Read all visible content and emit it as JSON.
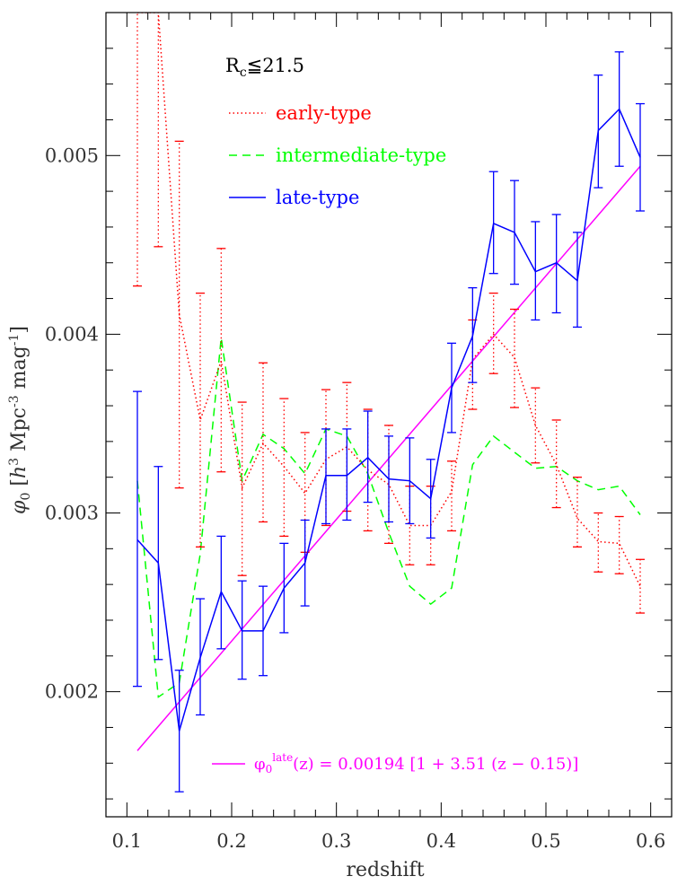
{
  "chart_data": {
    "type": "line",
    "xlabel": "redshift",
    "ylabel": "φ0 [h3 Mpc-3 mag-1]",
    "xlim": [
      0.08,
      0.62
    ],
    "ylim": [
      0.0013,
      0.0058
    ],
    "x_ticks": [
      "0.1",
      "0.2",
      "0.3",
      "0.4",
      "0.5",
      "0.6"
    ],
    "y_ticks": [
      "0.002",
      "0.003",
      "0.004",
      "0.005"
    ],
    "selection_label": "Rc≦21.5",
    "series": [
      {
        "name": "early-type",
        "color": "#ff0000",
        "style": "dotted",
        "x": [
          0.11,
          0.13,
          0.15,
          0.17,
          0.19,
          0.21,
          0.23,
          0.25,
          0.27,
          0.29,
          0.31,
          0.33,
          0.35,
          0.37,
          0.39,
          0.41,
          0.43,
          0.45,
          0.47,
          0.49,
          0.51,
          0.53,
          0.55,
          0.57,
          0.59
        ],
        "y": [
          0.0058,
          0.0058,
          0.00411,
          0.00352,
          0.00385,
          0.00314,
          0.00339,
          0.00326,
          0.00311,
          0.0033,
          0.00337,
          0.00324,
          0.00316,
          0.00293,
          0.00293,
          0.00312,
          0.00386,
          0.004,
          0.00387,
          0.00349,
          0.00327,
          0.00297,
          0.00284,
          0.00283,
          0.00259
        ],
        "err_low": [
          0.00427,
          0.00449,
          0.00314,
          0.00281,
          0.00323,
          0.00265,
          0.00295,
          0.00287,
          0.00278,
          0.00293,
          0.00301,
          0.0029,
          0.00283,
          0.00271,
          0.00271,
          0.0029,
          0.00358,
          0.00378,
          0.00359,
          0.00328,
          0.00303,
          0.00281,
          0.00267,
          0.00266,
          0.00244
        ],
        "err_high": [
          0.0058,
          0.0058,
          0.00508,
          0.00423,
          0.00448,
          0.00362,
          0.00384,
          0.00364,
          0.00345,
          0.00369,
          0.00373,
          0.00358,
          0.00349,
          0.00315,
          0.00315,
          0.00329,
          0.00408,
          0.00423,
          0.00414,
          0.0037,
          0.00352,
          0.0032,
          0.003,
          0.00298,
          0.00274
        ]
      },
      {
        "name": "intermediate-type",
        "color": "#00ff00",
        "style": "dashed",
        "x": [
          0.11,
          0.13,
          0.15,
          0.17,
          0.19,
          0.21,
          0.23,
          0.25,
          0.27,
          0.29,
          0.31,
          0.33,
          0.35,
          0.37,
          0.39,
          0.41,
          0.43,
          0.45,
          0.47,
          0.49,
          0.51,
          0.53,
          0.55,
          0.57,
          0.59
        ],
        "y": [
          0.00318,
          0.00197,
          0.00205,
          0.00277,
          0.00398,
          0.00318,
          0.00344,
          0.00336,
          0.00322,
          0.00347,
          0.00343,
          0.00322,
          0.00289,
          0.00259,
          0.00249,
          0.00258,
          0.00327,
          0.00343,
          0.00334,
          0.00325,
          0.00326,
          0.00318,
          0.00313,
          0.00315,
          0.00299
        ]
      },
      {
        "name": "late-type",
        "color": "#0000ff",
        "style": "solid",
        "x": [
          0.11,
          0.13,
          0.15,
          0.17,
          0.19,
          0.21,
          0.23,
          0.25,
          0.27,
          0.29,
          0.31,
          0.33,
          0.35,
          0.37,
          0.39,
          0.41,
          0.43,
          0.45,
          0.47,
          0.49,
          0.51,
          0.53,
          0.55,
          0.57,
          0.59
        ],
        "y": [
          0.00285,
          0.00272,
          0.00178,
          0.00219,
          0.00256,
          0.00234,
          0.00234,
          0.00258,
          0.00272,
          0.00321,
          0.00321,
          0.00331,
          0.00319,
          0.00318,
          0.00308,
          0.0037,
          0.00399,
          0.00462,
          0.00457,
          0.00435,
          0.0044,
          0.0043,
          0.00514,
          0.00526,
          0.00499
        ],
        "err_low": [
          0.00203,
          0.00218,
          0.00144,
          0.00187,
          0.00224,
          0.00207,
          0.00209,
          0.00233,
          0.00248,
          0.00294,
          0.00296,
          0.00306,
          0.00295,
          0.00294,
          0.00286,
          0.00345,
          0.00373,
          0.00434,
          0.00428,
          0.00408,
          0.00412,
          0.00404,
          0.00482,
          0.00494,
          0.00469
        ],
        "err_high": [
          0.00368,
          0.00326,
          0.00212,
          0.00252,
          0.00287,
          0.00262,
          0.00259,
          0.00283,
          0.00296,
          0.00347,
          0.00347,
          0.00357,
          0.00343,
          0.00342,
          0.0033,
          0.00395,
          0.00426,
          0.00491,
          0.00486,
          0.00463,
          0.00467,
          0.00457,
          0.00545,
          0.00558,
          0.00529
        ]
      }
    ],
    "fit_line": {
      "color": "#ff00ff",
      "x": [
        0.11,
        0.59
      ],
      "y": [
        0.00167,
        0.00494
      ],
      "label": "φ0late(z) = 0.00194 [1 + 3.51 (z − 0.15)]"
    }
  }
}
